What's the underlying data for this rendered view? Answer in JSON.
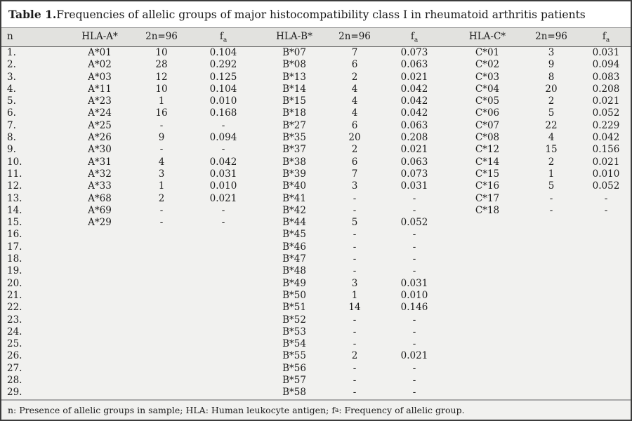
{
  "title": {
    "bold": "Table 1.",
    "rest": " Frequencies of allelic groups of major histocompatibility class I in rheumatoid arthritis patients"
  },
  "table": {
    "headers": [
      {
        "key": "n",
        "label": "n"
      },
      {
        "key": "hla-a",
        "label": "HLA-A*"
      },
      {
        "key": "2n96-a",
        "label": "2n=96"
      },
      {
        "key": "fa-a",
        "label": "f",
        "sub": "a"
      },
      {
        "key": "hla-b",
        "label": "HLA-B*"
      },
      {
        "key": "2n96-b",
        "label": "2n=96"
      },
      {
        "key": "fa-b",
        "label": "f",
        "sub": "a"
      },
      {
        "key": "hla-c",
        "label": "HLA-C*"
      },
      {
        "key": "2n96-c",
        "label": "2n=96"
      },
      {
        "key": "fa-c",
        "label": "f",
        "sub": "a"
      }
    ],
    "rows": [
      [
        "1.",
        "A*01",
        "10",
        "0.104",
        "B*07",
        "7",
        "0.073",
        "C*01",
        "3",
        "0.031"
      ],
      [
        "2.",
        "A*02",
        "28",
        "0.292",
        "B*08",
        "6",
        "0.063",
        "C*02",
        "9",
        "0.094"
      ],
      [
        "3.",
        "A*03",
        "12",
        "0.125",
        "B*13",
        "2",
        "0.021",
        "C*03",
        "8",
        "0.083"
      ],
      [
        "4.",
        "A*11",
        "10",
        "0.104",
        "B*14",
        "4",
        "0.042",
        "C*04",
        "20",
        "0.208"
      ],
      [
        "5.",
        "A*23",
        "1",
        "0.010",
        "B*15",
        "4",
        "0.042",
        "C*05",
        "2",
        "0.021"
      ],
      [
        "6.",
        "A*24",
        "16",
        "0.168",
        "B*18",
        "4",
        "0.042",
        "C*06",
        "5",
        "0.052"
      ],
      [
        "7.",
        "A*25",
        "-",
        "-",
        "B*27",
        "6",
        "0.063",
        "C*07",
        "22",
        "0.229"
      ],
      [
        "8.",
        "A*26",
        "9",
        "0.094",
        "B*35",
        "20",
        "0.208",
        "C*08",
        "4",
        "0.042"
      ],
      [
        "9.",
        "A*30",
        "-",
        "-",
        "B*37",
        "2",
        "0.021",
        "C*12",
        "15",
        "0.156"
      ],
      [
        "10.",
        "A*31",
        "4",
        "0.042",
        "B*38",
        "6",
        "0.063",
        "C*14",
        "2",
        "0.021"
      ],
      [
        "11.",
        "A*32",
        "3",
        "0.031",
        "B*39",
        "7",
        "0.073",
        "C*15",
        "1",
        "0.010"
      ],
      [
        "12.",
        "A*33",
        "1",
        "0.010",
        "B*40",
        "3",
        "0.031",
        "C*16",
        "5",
        "0.052"
      ],
      [
        "13.",
        "A*68",
        "2",
        "0.021",
        "B*41",
        "-",
        "-",
        "C*17",
        "-",
        "-"
      ],
      [
        "14.",
        "A*69",
        "-",
        "-",
        "B*42",
        "-",
        "-",
        "C*18",
        "-",
        "-"
      ],
      [
        "15.",
        "A*29",
        "-",
        "-",
        "B*44",
        "5",
        "0.052",
        "",
        "",
        ""
      ],
      [
        "16.",
        "",
        "",
        "",
        "B*45",
        "-",
        "-",
        "",
        "",
        ""
      ],
      [
        "17.",
        "",
        "",
        "",
        "B*46",
        "-",
        "-",
        "",
        "",
        ""
      ],
      [
        "18.",
        "",
        "",
        "",
        "B*47",
        "-",
        "-",
        "",
        "",
        ""
      ],
      [
        "19.",
        "",
        "",
        "",
        "B*48",
        "-",
        "-",
        "",
        "",
        ""
      ],
      [
        "20.",
        "",
        "",
        "",
        "B*49",
        "3",
        "0.031",
        "",
        "",
        ""
      ],
      [
        "21.",
        "",
        "",
        "",
        "B*50",
        "1",
        "0.010",
        "",
        "",
        ""
      ],
      [
        "22.",
        "",
        "",
        "",
        "B*51",
        "14",
        "0.146",
        "",
        "",
        ""
      ],
      [
        "23.",
        "",
        "",
        "",
        "B*52",
        "-",
        "-",
        "",
        "",
        ""
      ],
      [
        "24.",
        "",
        "",
        "",
        "B*53",
        "-",
        "-",
        "",
        "",
        ""
      ],
      [
        "25.",
        "",
        "",
        "",
        "B*54",
        "-",
        "-",
        "",
        "",
        ""
      ],
      [
        "26.",
        "",
        "",
        "",
        "B*55",
        "2",
        "0.021",
        "",
        "",
        ""
      ],
      [
        "27.",
        "",
        "",
        "",
        "B*56",
        "-",
        "-",
        "",
        "",
        ""
      ],
      [
        "28.",
        "",
        "",
        "",
        "B*57",
        "-",
        "-",
        "",
        "",
        ""
      ],
      [
        "29.",
        "",
        "",
        "",
        "B*58",
        "-",
        "-",
        "",
        "",
        ""
      ]
    ]
  },
  "footnote": {
    "part1": "n: Presence of allelic groups in sample; HLA: Human leukocyte antigen; f",
    "sub": "a",
    "part2": ": Frequency of allelic group."
  },
  "colors": {
    "outer_border": "#3c3c3c",
    "title_bg": "#ffffff",
    "header_bg": "#e2e2df",
    "body_bg": "#f1f1ef",
    "text": "#1c1c1c",
    "rule_under_title": "#8a8a8a",
    "rule_under_header": "#6e6e6e",
    "rule_above_footer": "#a9a9a9"
  }
}
